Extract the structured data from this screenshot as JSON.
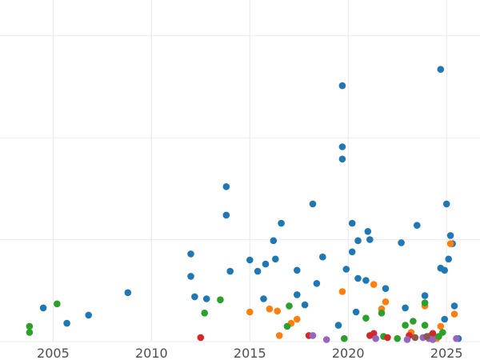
{
  "chart_data": {
    "type": "scatter",
    "title": "",
    "xlabel": "",
    "ylabel": "",
    "xlim": [
      2002.3,
      2026.7
    ],
    "ylim": [
      0,
      335
    ],
    "x_ticks": [
      2005,
      2010,
      2015,
      2020,
      2025
    ],
    "x_tick_labels": [
      "2005",
      "2010",
      "2015",
      "2020",
      "2025"
    ],
    "y_gridlines": [
      0,
      100,
      200,
      300
    ],
    "y_tick_labels_visible": false,
    "grid": true,
    "legend": "none",
    "colors": {
      "blue": "#1f77b4",
      "orange": "#ff7f0e",
      "green": "#2ca02c",
      "red": "#d62728",
      "purple": "#9467bd",
      "brown": "#8c564b",
      "gridline": "#ebebeb"
    },
    "series": [
      {
        "color": "#1f77b4",
        "points": [
          [
            2004.5,
            33
          ],
          [
            2005.7,
            18
          ],
          [
            2006.8,
            26
          ],
          [
            2008.8,
            48
          ],
          [
            2012.0,
            64
          ],
          [
            2012.0,
            86
          ],
          [
            2012.2,
            44
          ],
          [
            2012.8,
            42
          ],
          [
            2013.8,
            152
          ],
          [
            2013.8,
            124
          ],
          [
            2014.0,
            69
          ],
          [
            2015.0,
            80
          ],
          [
            2015.4,
            69
          ],
          [
            2015.7,
            42
          ],
          [
            2015.8,
            76
          ],
          [
            2016.2,
            99
          ],
          [
            2016.3,
            81
          ],
          [
            2016.6,
            116
          ],
          [
            2017.4,
            70
          ],
          [
            2017.4,
            46
          ],
          [
            2017.8,
            36
          ],
          [
            2018.2,
            135
          ],
          [
            2018.4,
            57
          ],
          [
            2018.7,
            83
          ],
          [
            2019.5,
            16
          ],
          [
            2019.7,
            251
          ],
          [
            2019.7,
            191
          ],
          [
            2019.7,
            179
          ],
          [
            2019.9,
            71
          ],
          [
            2020.2,
            88
          ],
          [
            2020.2,
            116
          ],
          [
            2020.4,
            29
          ],
          [
            2020.5,
            99
          ],
          [
            2020.5,
            62
          ],
          [
            2020.9,
            60
          ],
          [
            2021.0,
            108
          ],
          [
            2021.1,
            100
          ],
          [
            2021.9,
            52
          ],
          [
            2022.7,
            97
          ],
          [
            2022.9,
            33
          ],
          [
            2023.5,
            114
          ],
          [
            2023.9,
            45
          ],
          [
            2024.7,
            267
          ],
          [
            2024.7,
            72
          ],
          [
            2024.9,
            70
          ],
          [
            2024.9,
            22
          ],
          [
            2025.0,
            135
          ],
          [
            2025.1,
            81
          ],
          [
            2025.2,
            104
          ],
          [
            2025.3,
            96
          ],
          [
            2025.4,
            35
          ],
          [
            2025.6,
            3
          ]
        ]
      },
      {
        "color": "#ff7f0e",
        "points": [
          [
            2015.0,
            29
          ],
          [
            2016.0,
            32
          ],
          [
            2016.4,
            30
          ],
          [
            2016.5,
            6
          ],
          [
            2017.1,
            18
          ],
          [
            2017.4,
            22
          ],
          [
            2019.7,
            49
          ],
          [
            2021.3,
            56
          ],
          [
            2021.7,
            32
          ],
          [
            2021.9,
            39
          ],
          [
            2023.2,
            9
          ],
          [
            2023.9,
            35
          ],
          [
            2024.5,
            3
          ],
          [
            2024.7,
            15
          ],
          [
            2025.2,
            96
          ],
          [
            2025.4,
            27
          ]
        ]
      },
      {
        "color": "#2ca02c",
        "points": [
          [
            2003.8,
            15
          ],
          [
            2003.8,
            9
          ],
          [
            2005.2,
            37
          ],
          [
            2012.7,
            28
          ],
          [
            2013.5,
            41
          ],
          [
            2017.0,
            35
          ],
          [
            2016.9,
            15
          ],
          [
            2019.8,
            3
          ],
          [
            2020.9,
            23
          ],
          [
            2021.7,
            28
          ],
          [
            2021.8,
            5
          ],
          [
            2022.5,
            3
          ],
          [
            2022.9,
            16
          ],
          [
            2023.3,
            20
          ],
          [
            2023.9,
            38
          ],
          [
            2023.9,
            16
          ],
          [
            2024.2,
            6
          ],
          [
            2024.6,
            5
          ],
          [
            2024.8,
            9
          ]
        ]
      },
      {
        "color": "#d62728",
        "points": [
          [
            2012.5,
            4
          ],
          [
            2018.0,
            6
          ],
          [
            2021.1,
            6
          ],
          [
            2021.3,
            8
          ],
          [
            2022.0,
            4
          ],
          [
            2023.1,
            6
          ],
          [
            2024.3,
            8
          ]
        ]
      },
      {
        "color": "#9467bd",
        "points": [
          [
            2018.2,
            6
          ],
          [
            2018.9,
            2
          ],
          [
            2021.4,
            3
          ],
          [
            2023.0,
            2
          ],
          [
            2023.8,
            4
          ],
          [
            2024.1,
            3
          ],
          [
            2024.3,
            2
          ],
          [
            2025.5,
            3
          ]
        ]
      },
      {
        "color": "#8c564b",
        "points": [
          [
            2023.4,
            4
          ],
          [
            2024.0,
            5
          ]
        ]
      }
    ]
  }
}
